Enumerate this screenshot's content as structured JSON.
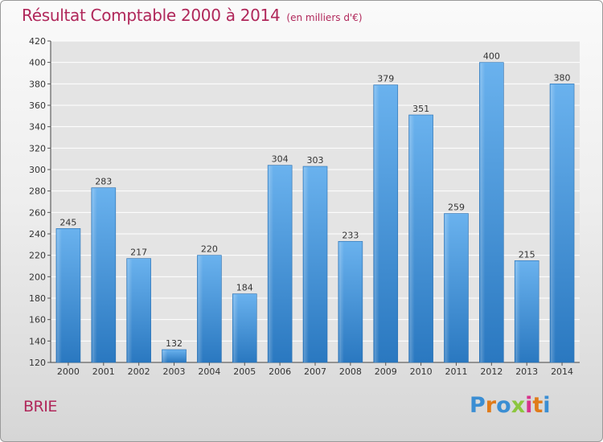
{
  "chart_data": {
    "type": "bar",
    "title": "Résultat Comptable 2000 à 2014",
    "subtitle": "(en milliers d'€)",
    "categories": [
      "2000",
      "2001",
      "2002",
      "2003",
      "2004",
      "2005",
      "2006",
      "2007",
      "2008",
      "2009",
      "2010",
      "2011",
      "2012",
      "2013",
      "2014"
    ],
    "values": [
      245,
      283,
      217,
      132,
      220,
      184,
      304,
      303,
      233,
      379,
      351,
      259,
      400,
      215,
      380
    ],
    "ylim": [
      120,
      420
    ],
    "yticks": [
      120,
      140,
      160,
      180,
      200,
      220,
      240,
      260,
      280,
      300,
      320,
      340,
      360,
      380,
      400,
      420
    ],
    "xlabel": "",
    "ylabel": "",
    "grid": true,
    "bar_color": "#3d8fd6"
  },
  "footer": {
    "city": "BRIE",
    "logo": "Proxiti"
  },
  "logo_colors": [
    "#3b8ed3",
    "#e07b1a",
    "#3b8ed3",
    "#8cc63e",
    "#d8328b",
    "#e07b1a",
    "#3b8ed3"
  ]
}
